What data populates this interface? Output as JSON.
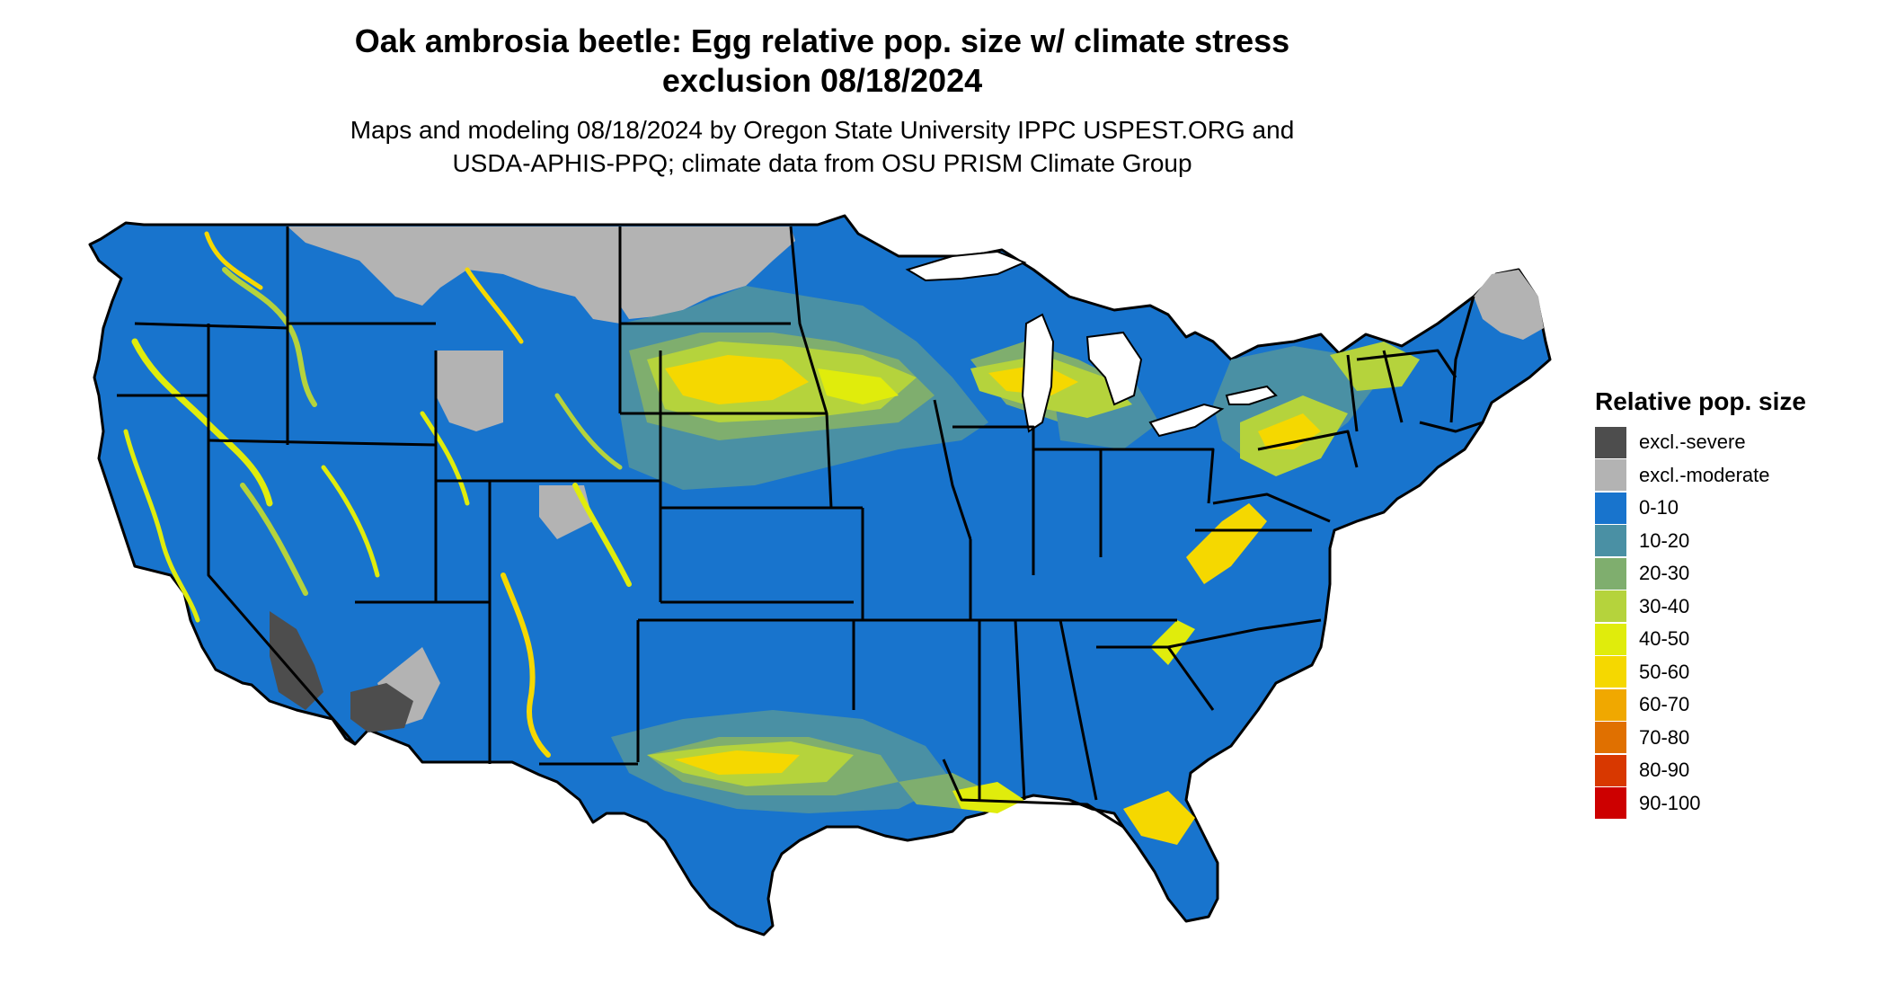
{
  "title_line1": "Oak ambrosia beetle: Egg relative pop. size w/ climate stress",
  "title_line2": "exclusion 08/18/2024",
  "subtitle_line1": "Maps and modeling 08/18/2024 by Oregon State University IPPC USPEST.ORG and",
  "subtitle_line2": "USDA-APHIS-PPQ; climate data from OSU PRISM Climate Group",
  "legend": {
    "title": "Relative pop. size",
    "items": [
      {
        "label": "excl.-severe",
        "color": "#4d4d4d"
      },
      {
        "label": "excl.-moderate",
        "color": "#b3b3b3"
      },
      {
        "label": "0-10",
        "color": "#1874cd"
      },
      {
        "label": "10-20",
        "color": "#4a90a4"
      },
      {
        "label": "20-30",
        "color": "#7fae6e"
      },
      {
        "label": "30-40",
        "color": "#b5d33c"
      },
      {
        "label": "40-50",
        "color": "#e0ec0c"
      },
      {
        "label": "50-60",
        "color": "#f5d800"
      },
      {
        "label": "60-70",
        "color": "#f0a800"
      },
      {
        "label": "70-80",
        "color": "#e07000"
      },
      {
        "label": "80-90",
        "color": "#d83800"
      },
      {
        "label": "90-100",
        "color": "#cd0000"
      }
    ]
  },
  "map": {
    "region": "Contiguous United States",
    "base_color": "#1874cd",
    "border_color": "#000000"
  }
}
